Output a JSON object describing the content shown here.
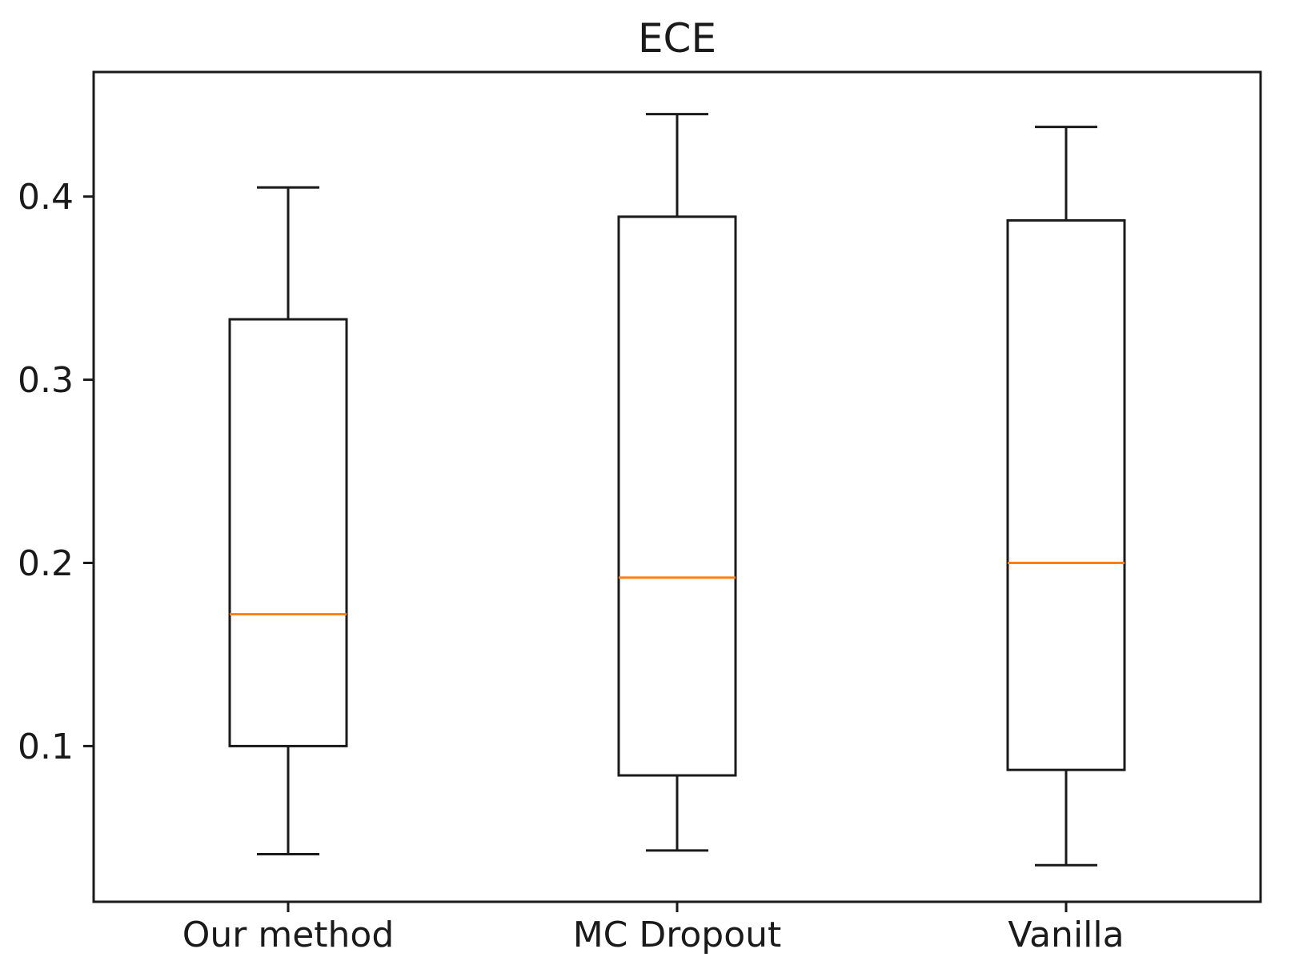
{
  "chart_data": {
    "type": "boxplot",
    "title": "ECE",
    "categories": [
      "Our method",
      "MC Dropout",
      "Vanilla"
    ],
    "series": [
      {
        "name": "Our method",
        "whisker_low": 0.041,
        "q1": 0.1,
        "median": 0.172,
        "q3": 0.333,
        "whisker_high": 0.405
      },
      {
        "name": "MC Dropout",
        "whisker_low": 0.043,
        "q1": 0.084,
        "median": 0.192,
        "q3": 0.389,
        "whisker_high": 0.445
      },
      {
        "name": "Vanilla",
        "whisker_low": 0.035,
        "q1": 0.087,
        "median": 0.2,
        "q3": 0.387,
        "whisker_high": 0.438
      }
    ],
    "yticks": [
      "0.1",
      "0.2",
      "0.3",
      "0.4"
    ],
    "ytick_values": [
      0.1,
      0.2,
      0.3,
      0.4
    ],
    "ylim": [
      0.015,
      0.468
    ],
    "xlabel": "",
    "ylabel": "",
    "grid": false,
    "legend": null,
    "colors": {
      "line": "#1a1a1a",
      "median": "#ff7f0e",
      "background": "#ffffff",
      "text": "#1a1a1a"
    }
  }
}
